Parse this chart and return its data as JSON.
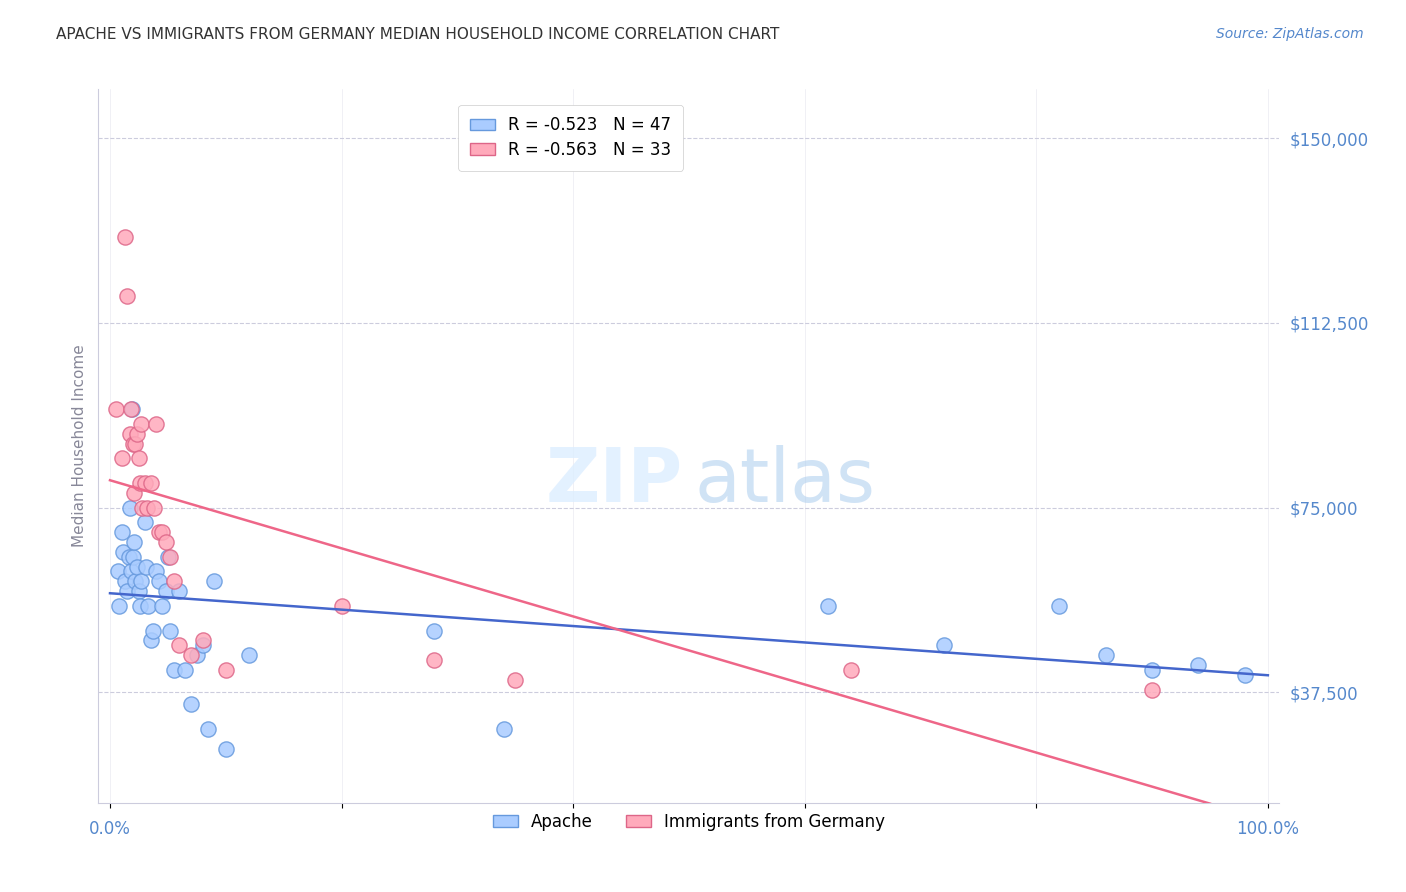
{
  "title": "APACHE VS IMMIGRANTS FROM GERMANY MEDIAN HOUSEHOLD INCOME CORRELATION CHART",
  "source": "Source: ZipAtlas.com",
  "ylabel": "Median Household Income",
  "ytick_labels": [
    "$37,500",
    "$75,000",
    "$112,500",
    "$150,000"
  ],
  "ytick_values": [
    37500,
    75000,
    112500,
    150000
  ],
  "ymin": 15000,
  "ymax": 160000,
  "xmin": -0.01,
  "xmax": 1.01,
  "legend_entries": [
    {
      "label": "R = -0.523   N = 47",
      "color": "#aaccff"
    },
    {
      "label": "R = -0.563   N = 33",
      "color": "#ffaabb"
    }
  ],
  "apache_color": "#aaccff",
  "apache_edge_color": "#6699dd",
  "germany_color": "#ffaabb",
  "germany_edge_color": "#dd6688",
  "apache_line_color": "#4466cc",
  "germany_line_color": "#ee6688",
  "title_color": "#333333",
  "ytick_color": "#5588cc",
  "grid_color": "#ccccdd",
  "background_color": "#ffffff",
  "apache_x": [
    0.007,
    0.008,
    0.01,
    0.011,
    0.013,
    0.015,
    0.016,
    0.017,
    0.018,
    0.019,
    0.02,
    0.021,
    0.022,
    0.023,
    0.025,
    0.026,
    0.027,
    0.03,
    0.031,
    0.033,
    0.035,
    0.037,
    0.04,
    0.042,
    0.045,
    0.048,
    0.05,
    0.052,
    0.055,
    0.06,
    0.065,
    0.07,
    0.075,
    0.08,
    0.085,
    0.09,
    0.1,
    0.12,
    0.28,
    0.34,
    0.62,
    0.72,
    0.82,
    0.86,
    0.9,
    0.94,
    0.98
  ],
  "apache_y": [
    62000,
    55000,
    70000,
    66000,
    60000,
    58000,
    65000,
    75000,
    62000,
    95000,
    65000,
    68000,
    60000,
    63000,
    58000,
    55000,
    60000,
    72000,
    63000,
    55000,
    48000,
    50000,
    62000,
    60000,
    55000,
    58000,
    65000,
    50000,
    42000,
    58000,
    42000,
    35000,
    45000,
    47000,
    30000,
    60000,
    26000,
    45000,
    50000,
    30000,
    55000,
    47000,
    55000,
    45000,
    42000,
    43000,
    41000
  ],
  "germany_x": [
    0.005,
    0.01,
    0.013,
    0.015,
    0.017,
    0.018,
    0.02,
    0.021,
    0.022,
    0.023,
    0.025,
    0.026,
    0.027,
    0.028,
    0.03,
    0.032,
    0.035,
    0.038,
    0.04,
    0.042,
    0.045,
    0.048,
    0.052,
    0.055,
    0.06,
    0.07,
    0.08,
    0.1,
    0.2,
    0.28,
    0.35,
    0.64,
    0.9
  ],
  "germany_y": [
    95000,
    85000,
    130000,
    118000,
    90000,
    95000,
    88000,
    78000,
    88000,
    90000,
    85000,
    80000,
    92000,
    75000,
    80000,
    75000,
    80000,
    75000,
    92000,
    70000,
    70000,
    68000,
    65000,
    60000,
    47000,
    45000,
    48000,
    42000,
    55000,
    44000,
    40000,
    42000,
    38000
  ]
}
